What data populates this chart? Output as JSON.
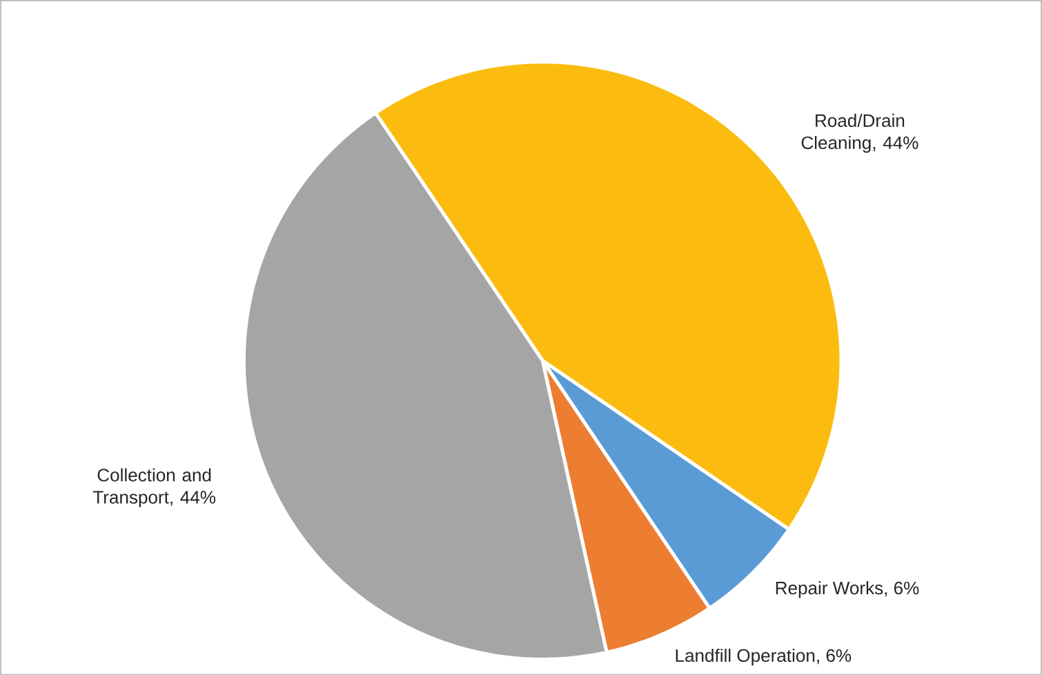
{
  "chart_data": {
    "type": "pie",
    "categories": [
      "Road/Drain Cleaning",
      "Repair Works",
      "Landfill Operation",
      "Collection and Transport"
    ],
    "values": [
      44,
      6,
      6,
      44
    ],
    "value_labels": [
      ", 44%",
      ", 6%",
      ", 6%",
      ", 44%"
    ],
    "colors": [
      "#fbbc0f",
      "#5b9bd5",
      "#ed7d31",
      "#a5a5a5"
    ]
  }
}
